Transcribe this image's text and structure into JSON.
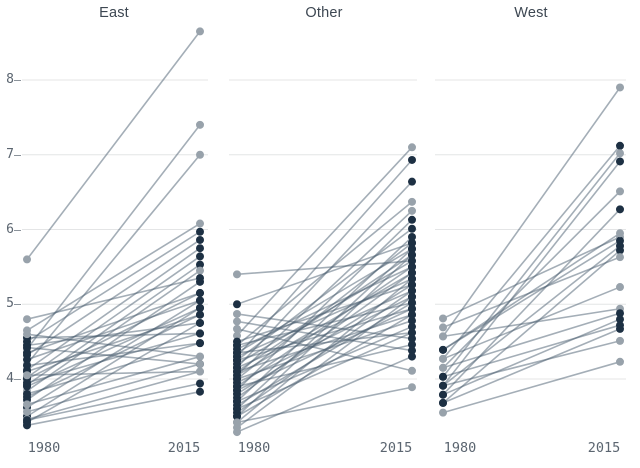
{
  "colors": {
    "background": "#ffffff",
    "slope_line": "rgba(74,94,112,0.5)",
    "dot_dark": "#1d3043",
    "dot_light": "#98a2ab",
    "gridline": "#e4e5e6",
    "tick": "#8b939b",
    "axis_text": "#5b6570",
    "title_text": "#3d4752"
  },
  "y_axis": {
    "ticks": [
      8,
      7,
      6,
      5,
      4
    ]
  },
  "chart_data": {
    "type": "line",
    "subtype": "slopegraph-small-multiples",
    "x_labels": [
      "1980",
      "2015"
    ],
    "grid_values": [
      4,
      5,
      6,
      7,
      8
    ],
    "ylim": [
      3.2,
      8.8
    ],
    "legend": "dot color: dark=#1d3043, light=#98a2ab; series format [value_1980, value_2015, dot1980, dot2015]",
    "facets": [
      {
        "title": "East",
        "series": [
          [
            5.6,
            8.65,
            "l",
            "l"
          ],
          [
            4.4,
            7.4,
            "l",
            "l"
          ],
          [
            4.2,
            7.0,
            "l",
            "l"
          ],
          [
            4.65,
            6.08,
            "l",
            "l"
          ],
          [
            4.5,
            5.97,
            "d",
            "d"
          ],
          [
            4.32,
            5.86,
            "d",
            "d"
          ],
          [
            4.12,
            5.75,
            "d",
            "d"
          ],
          [
            4.02,
            5.64,
            "d",
            "d"
          ],
          [
            3.92,
            5.53,
            "d",
            "d"
          ],
          [
            3.84,
            5.45,
            "l",
            "l"
          ],
          [
            4.8,
            5.35,
            "l",
            "d"
          ],
          [
            3.72,
            5.3,
            "d",
            "d"
          ],
          [
            4.35,
            5.15,
            "d",
            "d"
          ],
          [
            4.0,
            5.15,
            "d",
            "d"
          ],
          [
            4.26,
            5.05,
            "d",
            "d"
          ],
          [
            3.62,
            5.05,
            "d",
            "d"
          ],
          [
            3.9,
            4.95,
            "d",
            "d"
          ],
          [
            3.5,
            4.95,
            "d",
            "d"
          ],
          [
            4.1,
            4.86,
            "d",
            "d"
          ],
          [
            3.76,
            4.86,
            "d",
            "d"
          ],
          [
            4.45,
            4.75,
            "d",
            "d"
          ],
          [
            3.42,
            4.75,
            "d",
            "d"
          ],
          [
            4.55,
            4.61,
            "d",
            "d"
          ],
          [
            3.95,
            4.61,
            "d",
            "d"
          ],
          [
            4.18,
            4.48,
            "d",
            "d"
          ],
          [
            3.8,
            4.48,
            "d",
            "d"
          ],
          [
            4.6,
            4.3,
            "l",
            "l"
          ],
          [
            3.66,
            4.3,
            "l",
            "l"
          ],
          [
            4.42,
            4.2,
            "d",
            "d"
          ],
          [
            3.56,
            4.2,
            "l",
            "l"
          ],
          [
            4.05,
            4.1,
            "l",
            "l"
          ],
          [
            3.46,
            4.1,
            "l",
            "l"
          ],
          [
            3.45,
            3.94,
            "d",
            "d"
          ],
          [
            3.38,
            3.83,
            "d",
            "d"
          ]
        ]
      },
      {
        "title": "Other",
        "series": [
          [
            5.4,
            5.58,
            "l",
            "l"
          ],
          [
            4.58,
            7.1,
            "l",
            "l"
          ],
          [
            4.3,
            6.93,
            "d",
            "d"
          ],
          [
            4.15,
            6.64,
            "d",
            "d"
          ],
          [
            4.45,
            6.37,
            "l",
            "l"
          ],
          [
            4.05,
            6.25,
            "l",
            "l"
          ],
          [
            3.85,
            6.13,
            "d",
            "d"
          ],
          [
            4.25,
            6.01,
            "d",
            "d"
          ],
          [
            3.7,
            5.9,
            "d",
            "d"
          ],
          [
            5.0,
            5.82,
            "d",
            "d"
          ],
          [
            4.0,
            5.82,
            "d",
            "d"
          ],
          [
            4.35,
            5.74,
            "d",
            "d"
          ],
          [
            3.6,
            5.74,
            "d",
            "d"
          ],
          [
            4.1,
            5.66,
            "d",
            "d"
          ],
          [
            3.5,
            5.66,
            "d",
            "d"
          ],
          [
            4.2,
            5.58,
            "d",
            "d"
          ],
          [
            3.9,
            5.5,
            "d",
            "d"
          ],
          [
            4.4,
            5.5,
            "d",
            "d"
          ],
          [
            3.75,
            5.42,
            "d",
            "d"
          ],
          [
            4.05,
            5.42,
            "d",
            "d"
          ],
          [
            3.42,
            5.34,
            "l",
            "d"
          ],
          [
            4.3,
            5.34,
            "d",
            "d"
          ],
          [
            3.8,
            5.26,
            "d",
            "d"
          ],
          [
            4.5,
            5.26,
            "d",
            "d"
          ],
          [
            4.15,
            5.18,
            "d",
            "d"
          ],
          [
            3.55,
            5.18,
            "d",
            "d"
          ],
          [
            3.95,
            5.1,
            "d",
            "d"
          ],
          [
            3.35,
            5.1,
            "l",
            "d"
          ],
          [
            4.45,
            5.02,
            "d",
            "d"
          ],
          [
            3.65,
            5.02,
            "d",
            "d"
          ],
          [
            4.25,
            4.94,
            "d",
            "d"
          ],
          [
            3.85,
            4.94,
            "d",
            "d"
          ],
          [
            4.1,
            4.86,
            "d",
            "d"
          ],
          [
            3.5,
            4.86,
            "d",
            "d"
          ],
          [
            4.0,
            4.78,
            "d",
            "d"
          ],
          [
            3.7,
            4.7,
            "d",
            "d"
          ],
          [
            4.35,
            4.62,
            "d",
            "d"
          ],
          [
            3.6,
            4.62,
            "d",
            "d"
          ],
          [
            4.87,
            4.54,
            "l",
            "d"
          ],
          [
            3.9,
            4.46,
            "d",
            "d"
          ],
          [
            4.77,
            4.38,
            "l",
            "d"
          ],
          [
            3.29,
            4.3,
            "l",
            "d"
          ],
          [
            4.67,
            4.11,
            "l",
            "l"
          ],
          [
            3.42,
            3.89,
            "l",
            "l"
          ]
        ]
      },
      {
        "title": "West",
        "series": [
          [
            4.57,
            7.9,
            "l",
            "l"
          ],
          [
            4.27,
            7.12,
            "l",
            "d"
          ],
          [
            4.03,
            7.02,
            "d",
            "l"
          ],
          [
            3.91,
            6.91,
            "d",
            "d"
          ],
          [
            4.15,
            6.51,
            "l",
            "l"
          ],
          [
            3.79,
            6.27,
            "d",
            "d"
          ],
          [
            4.81,
            5.9,
            "l",
            "l"
          ],
          [
            4.39,
            5.85,
            "d",
            "d"
          ],
          [
            3.91,
            5.78,
            "d",
            "d"
          ],
          [
            3.68,
            5.72,
            "d",
            "d"
          ],
          [
            4.69,
            5.63,
            "l",
            "l"
          ],
          [
            4.39,
            5.95,
            "d",
            "l"
          ],
          [
            4.27,
            5.23,
            "l",
            "l"
          ],
          [
            4.57,
            4.94,
            "l",
            "l"
          ],
          [
            4.15,
            4.88,
            "l",
            "d"
          ],
          [
            3.79,
            4.8,
            "d",
            "d"
          ],
          [
            4.03,
            4.72,
            "d",
            "d"
          ],
          [
            3.68,
            4.67,
            "d",
            "d"
          ],
          [
            3.91,
            4.51,
            "d",
            "l"
          ],
          [
            3.55,
            4.23,
            "l",
            "l"
          ]
        ]
      }
    ]
  }
}
